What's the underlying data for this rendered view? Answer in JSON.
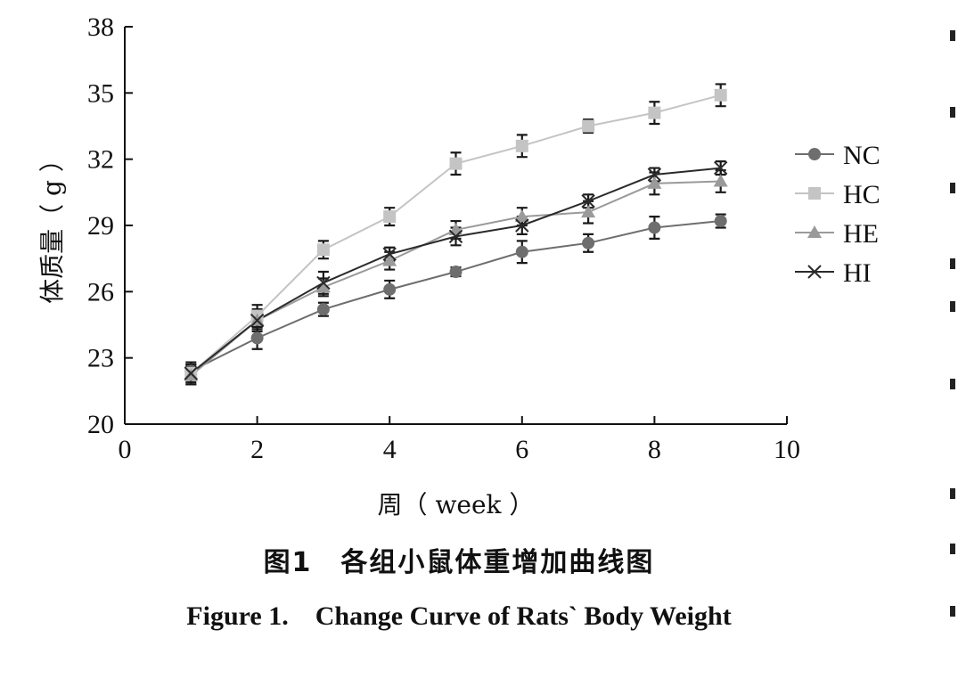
{
  "chart_data": {
    "type": "line",
    "xlabel": "周（ week ）",
    "ylabel": "体质量（ g ）",
    "xlim": [
      0,
      10
    ],
    "ylim": [
      20,
      38
    ],
    "x_ticks": [
      "0",
      "2",
      "4",
      "6",
      "8",
      "10"
    ],
    "y_ticks": [
      "20",
      "23",
      "26",
      "29",
      "32",
      "35",
      "38"
    ],
    "grid": false,
    "legend_position": "right",
    "x": [
      1,
      2,
      3,
      4,
      5,
      6,
      7,
      8,
      9
    ],
    "series": [
      {
        "name": "NC",
        "marker": "circle",
        "color": "#6e6e6e",
        "values": [
          22.4,
          23.9,
          25.2,
          26.1,
          26.9,
          27.8,
          28.2,
          28.9,
          29.2
        ],
        "errors": [
          0.3,
          0.5,
          0.3,
          0.4,
          0.2,
          0.5,
          0.4,
          0.5,
          0.3
        ]
      },
      {
        "name": "HC",
        "marker": "square",
        "color": "#c4c4c4",
        "values": [
          22.3,
          24.9,
          27.9,
          29.4,
          31.8,
          32.6,
          33.5,
          34.1,
          34.9
        ],
        "errors": [
          0.4,
          0.5,
          0.4,
          0.4,
          0.5,
          0.5,
          0.3,
          0.5,
          0.5
        ]
      },
      {
        "name": "HE",
        "marker": "triangle",
        "color": "#9a9a9a",
        "values": [
          22.2,
          24.7,
          26.2,
          27.4,
          28.8,
          29.4,
          29.6,
          30.9,
          31.0
        ],
        "errors": [
          0.4,
          0.4,
          0.4,
          0.4,
          0.4,
          0.4,
          0.5,
          0.5,
          0.5
        ]
      },
      {
        "name": "HI",
        "marker": "x",
        "color": "#2a2a2a",
        "values": [
          22.3,
          24.7,
          26.4,
          27.7,
          28.5,
          29.0,
          30.1,
          31.3,
          31.6
        ],
        "errors": [
          0.5,
          0.5,
          0.5,
          0.3,
          0.4,
          0.4,
          0.3,
          0.3,
          0.3
        ]
      }
    ]
  },
  "caption": {
    "cn": "图1　各组小鼠体重增加曲线图",
    "en": "Figure 1.　Change Curve of Rats` Body Weight"
  }
}
